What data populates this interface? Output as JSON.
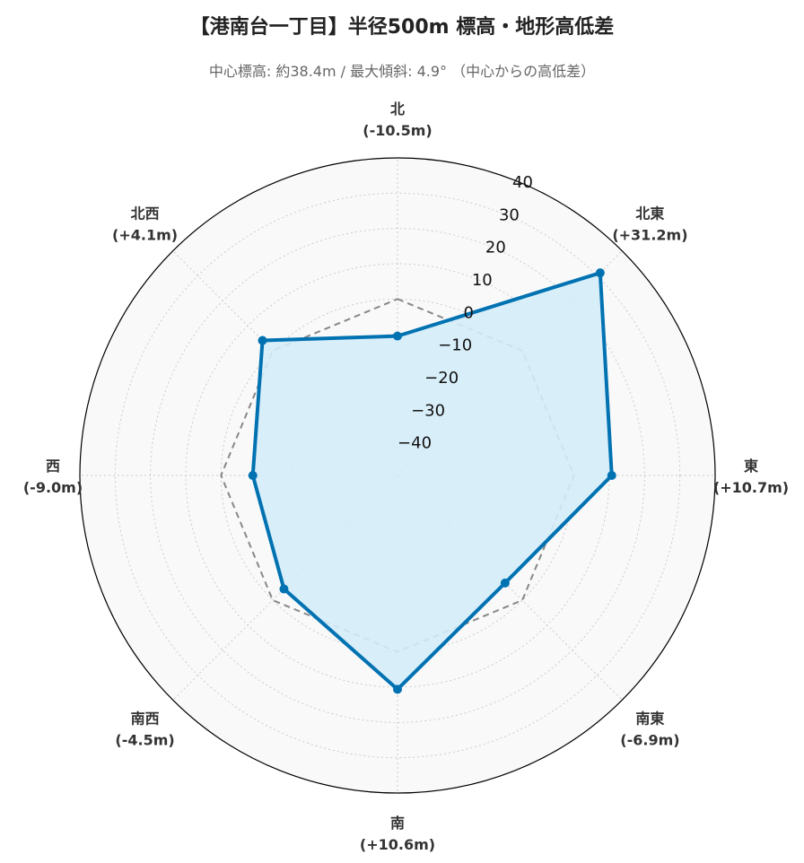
{
  "title": "【港南台一丁目】半径500m 標高・地形高低差",
  "subtitle": "中心標高: 約38.4m / 最大傾斜: 4.9° （中心からの高低差）",
  "colors": {
    "series": "#0072b2",
    "fill": "#d4ecf8",
    "reference": "#888888",
    "background": "#f9f9f9",
    "grid": "#cccccc"
  },
  "chart_data": {
    "type": "radar",
    "rlim": [
      -50,
      40
    ],
    "rticks": [
      -40,
      -30,
      -20,
      -10,
      0,
      10,
      20,
      30,
      40
    ],
    "grid": true,
    "categories": [
      "北",
      "北東",
      "東",
      "南東",
      "南",
      "南西",
      "西",
      "北西"
    ],
    "category_labels": [
      "(-10.5m)",
      "(+31.2m)",
      "(+10.7m)",
      "(-6.9m)",
      "(+10.6m)",
      "(-4.5m)",
      "(-9.0m)",
      "(+4.1m)"
    ],
    "series": [
      {
        "values": [
          -10.5,
          31.2,
          10.7,
          -6.9,
          10.6,
          -4.5,
          -9.0,
          4.1
        ]
      }
    ],
    "reference": {
      "style": "dashed",
      "value": 0
    }
  }
}
